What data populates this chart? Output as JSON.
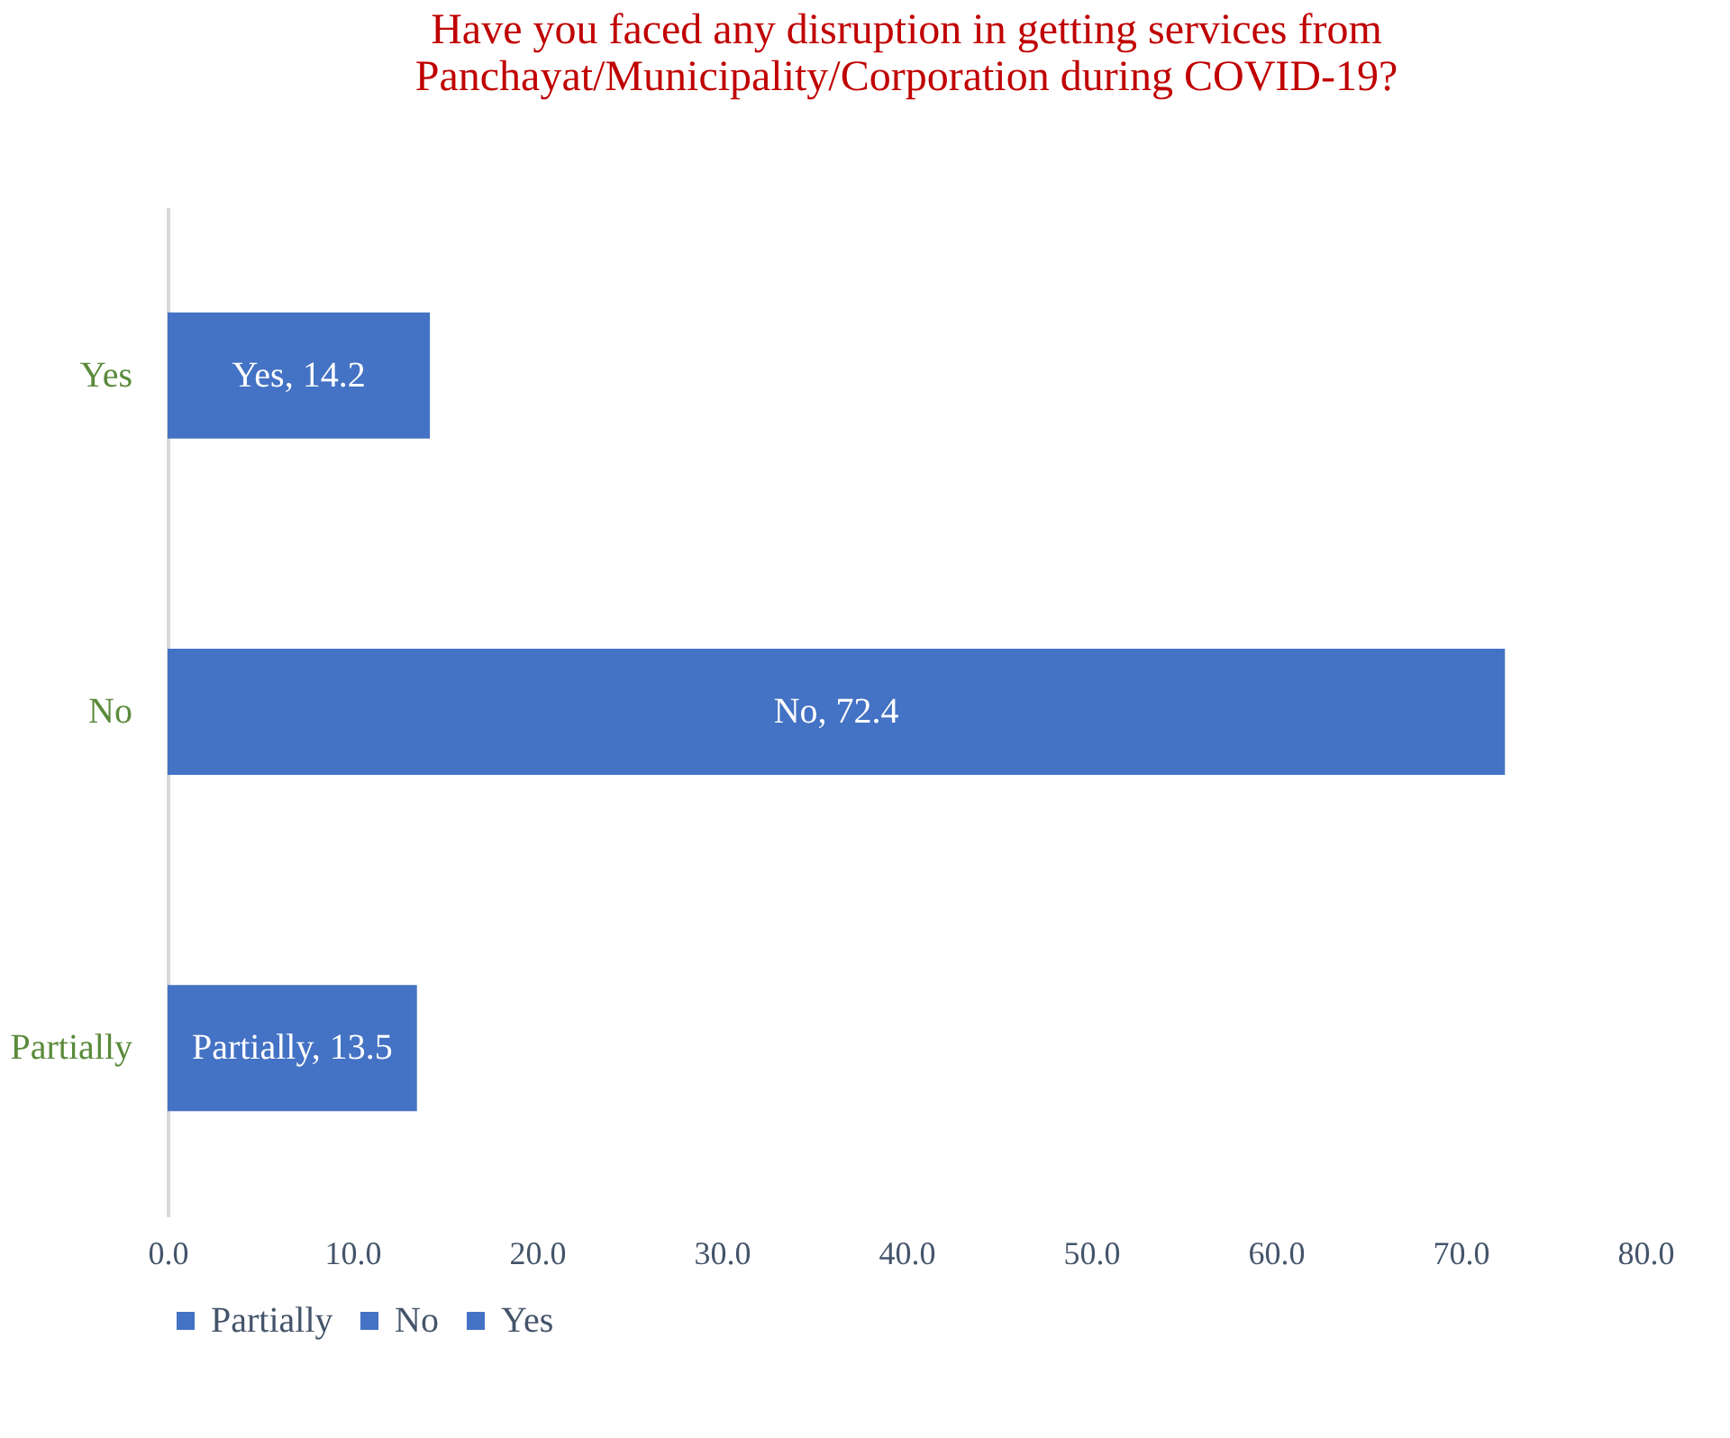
{
  "chart_data": {
    "type": "bar",
    "orientation": "horizontal",
    "title": [
      "Have you faced any disruption in getting services from",
      "Panchayat/Municipality/Corporation during COVID-19?"
    ],
    "categories": [
      "Yes",
      "No",
      "Partially"
    ],
    "series": [
      {
        "name": "Partially",
        "color": "#4472c4",
        "values": [
          null,
          null,
          13.5
        ],
        "value_labels": [
          null,
          null,
          "Partially, 13.5"
        ]
      },
      {
        "name": "No",
        "color": "#4472c4",
        "values": [
          null,
          72.4,
          null
        ],
        "value_labels": [
          null,
          "No, 72.4",
          null
        ]
      },
      {
        "name": "Yes",
        "color": "#4472c4",
        "values": [
          14.2,
          null,
          null
        ],
        "value_labels": [
          "Yes, 14.2",
          null,
          null
        ]
      }
    ],
    "xlim": [
      0,
      80
    ],
    "xticks": [
      {
        "value": 0,
        "label": "0.0"
      },
      {
        "value": 10,
        "label": "10.0"
      },
      {
        "value": 20,
        "label": "20.0"
      },
      {
        "value": 30,
        "label": "30.0"
      },
      {
        "value": 40,
        "label": "40.0"
      },
      {
        "value": 50,
        "label": "50.0"
      },
      {
        "value": 60,
        "label": "60.0"
      },
      {
        "value": 70,
        "label": "70.0"
      },
      {
        "value": 80,
        "label": "80.0"
      }
    ],
    "grid": false,
    "legend": "bottom"
  }
}
